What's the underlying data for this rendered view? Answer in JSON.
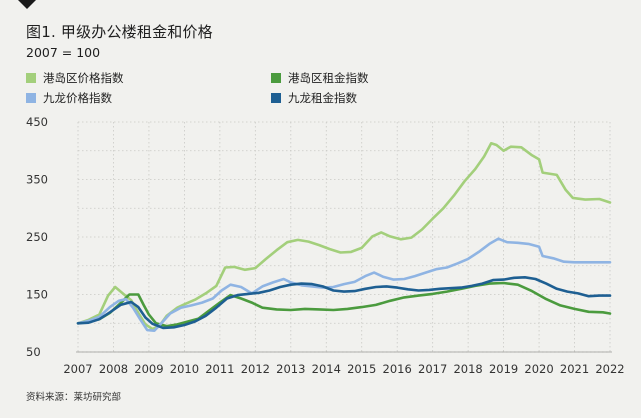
{
  "header": {
    "title": "图1. 甲级办公楼租金和价格",
    "subtitle": "2007 = 100"
  },
  "footer": {
    "source": "资料来源：莱坊研究部"
  },
  "chart_data": {
    "type": "line",
    "ylim": [
      50,
      450
    ],
    "yticks": [
      "450",
      "350",
      "250",
      "150",
      "50"
    ],
    "xlim": [
      2007,
      2022
    ],
    "xticks": [
      "2007",
      "2008",
      "2009",
      "2010",
      "2011",
      "2012",
      "2013",
      "2014",
      "2015",
      "2016",
      "2017",
      "2018",
      "2019",
      "2020",
      "2021",
      "2022"
    ],
    "grid": true,
    "legend_position": "top",
    "series": [
      {
        "name": "港岛区价格指数",
        "color": "#a3cf7b",
        "points": [
          [
            2007.0,
            100
          ],
          [
            2007.3,
            106
          ],
          [
            2007.6,
            115
          ],
          [
            2007.85,
            148
          ],
          [
            2008.05,
            163
          ],
          [
            2008.3,
            150
          ],
          [
            2008.5,
            140
          ],
          [
            2008.7,
            118
          ],
          [
            2008.9,
            98
          ],
          [
            2009.1,
            90
          ],
          [
            2009.3,
            96
          ],
          [
            2009.5,
            113
          ],
          [
            2009.8,
            127
          ],
          [
            2010.0,
            133
          ],
          [
            2010.3,
            141
          ],
          [
            2010.6,
            152
          ],
          [
            2010.9,
            165
          ],
          [
            2011.15,
            197
          ],
          [
            2011.4,
            198
          ],
          [
            2011.7,
            193
          ],
          [
            2012.0,
            196
          ],
          [
            2012.3,
            212
          ],
          [
            2012.6,
            227
          ],
          [
            2012.9,
            241
          ],
          [
            2013.2,
            245
          ],
          [
            2013.5,
            242
          ],
          [
            2013.8,
            236
          ],
          [
            2014.1,
            229
          ],
          [
            2014.4,
            223
          ],
          [
            2014.7,
            224
          ],
          [
            2015.0,
            231
          ],
          [
            2015.3,
            251
          ],
          [
            2015.55,
            258
          ],
          [
            2015.8,
            251
          ],
          [
            2016.1,
            246
          ],
          [
            2016.4,
            249
          ],
          [
            2016.7,
            263
          ],
          [
            2017.0,
            282
          ],
          [
            2017.3,
            300
          ],
          [
            2017.6,
            322
          ],
          [
            2017.9,
            347
          ],
          [
            2018.2,
            368
          ],
          [
            2018.45,
            390
          ],
          [
            2018.65,
            413
          ],
          [
            2018.8,
            410
          ],
          [
            2019.0,
            400
          ],
          [
            2019.2,
            407
          ],
          [
            2019.5,
            406
          ],
          [
            2019.8,
            392
          ],
          [
            2020.0,
            385
          ],
          [
            2020.1,
            362
          ],
          [
            2020.5,
            358
          ],
          [
            2020.75,
            332
          ],
          [
            2020.95,
            318
          ],
          [
            2021.3,
            315
          ],
          [
            2021.7,
            316
          ],
          [
            2022.0,
            310
          ]
        ]
      },
      {
        "name": "港岛区租金指数",
        "color": "#4b9b3e",
        "points": [
          [
            2007.0,
            100
          ],
          [
            2007.3,
            103
          ],
          [
            2007.6,
            107
          ],
          [
            2007.9,
            118
          ],
          [
            2008.2,
            135
          ],
          [
            2008.45,
            150
          ],
          [
            2008.7,
            150
          ],
          [
            2008.85,
            132
          ],
          [
            2009.0,
            115
          ],
          [
            2009.2,
            100
          ],
          [
            2009.5,
            95
          ],
          [
            2009.8,
            98
          ],
          [
            2010.1,
            103
          ],
          [
            2010.4,
            108
          ],
          [
            2010.7,
            122
          ],
          [
            2011.0,
            136
          ],
          [
            2011.3,
            149
          ],
          [
            2011.6,
            143
          ],
          [
            2011.9,
            136
          ],
          [
            2012.2,
            127
          ],
          [
            2012.6,
            124
          ],
          [
            2013.0,
            123
          ],
          [
            2013.4,
            125
          ],
          [
            2013.8,
            124
          ],
          [
            2014.2,
            123
          ],
          [
            2014.6,
            125
          ],
          [
            2015.0,
            128
          ],
          [
            2015.4,
            132
          ],
          [
            2015.8,
            139
          ],
          [
            2016.2,
            145
          ],
          [
            2016.6,
            148
          ],
          [
            2017.0,
            151
          ],
          [
            2017.4,
            155
          ],
          [
            2017.8,
            160
          ],
          [
            2018.2,
            165
          ],
          [
            2018.6,
            169
          ],
          [
            2019.0,
            170
          ],
          [
            2019.4,
            167
          ],
          [
            2019.8,
            156
          ],
          [
            2020.2,
            142
          ],
          [
            2020.6,
            131
          ],
          [
            2021.0,
            125
          ],
          [
            2021.4,
            120
          ],
          [
            2021.8,
            119
          ],
          [
            2022.0,
            117
          ]
        ]
      },
      {
        "name": "九龙价格指数",
        "color": "#8fb4e3",
        "points": [
          [
            2007.0,
            100
          ],
          [
            2007.3,
            104
          ],
          [
            2007.6,
            111
          ],
          [
            2007.9,
            128
          ],
          [
            2008.15,
            139
          ],
          [
            2008.35,
            142
          ],
          [
            2008.55,
            127
          ],
          [
            2008.75,
            107
          ],
          [
            2008.95,
            88
          ],
          [
            2009.15,
            87
          ],
          [
            2009.35,
            100
          ],
          [
            2009.6,
            117
          ],
          [
            2009.9,
            127
          ],
          [
            2010.2,
            131
          ],
          [
            2010.5,
            136
          ],
          [
            2010.8,
            143
          ],
          [
            2011.05,
            157
          ],
          [
            2011.3,
            167
          ],
          [
            2011.6,
            163
          ],
          [
            2011.9,
            152
          ],
          [
            2012.2,
            164
          ],
          [
            2012.5,
            171
          ],
          [
            2012.8,
            177
          ],
          [
            2013.0,
            171
          ],
          [
            2013.3,
            166
          ],
          [
            2013.6,
            164
          ],
          [
            2013.9,
            162
          ],
          [
            2014.2,
            163
          ],
          [
            2014.5,
            168
          ],
          [
            2014.8,
            172
          ],
          [
            2015.1,
            182
          ],
          [
            2015.35,
            188
          ],
          [
            2015.6,
            181
          ],
          [
            2015.9,
            176
          ],
          [
            2016.2,
            177
          ],
          [
            2016.5,
            182
          ],
          [
            2016.8,
            188
          ],
          [
            2017.1,
            194
          ],
          [
            2017.4,
            197
          ],
          [
            2017.7,
            204
          ],
          [
            2018.0,
            212
          ],
          [
            2018.3,
            224
          ],
          [
            2018.6,
            238
          ],
          [
            2018.85,
            247
          ],
          [
            2019.1,
            241
          ],
          [
            2019.4,
            240
          ],
          [
            2019.7,
            238
          ],
          [
            2020.0,
            233
          ],
          [
            2020.1,
            217
          ],
          [
            2020.4,
            213
          ],
          [
            2020.7,
            207
          ],
          [
            2021.0,
            206
          ],
          [
            2021.5,
            206
          ],
          [
            2022.0,
            206
          ]
        ]
      },
      {
        "name": "九龙租金指数",
        "color": "#1e5f92",
        "points": [
          [
            2007.0,
            100
          ],
          [
            2007.3,
            101
          ],
          [
            2007.6,
            107
          ],
          [
            2007.9,
            119
          ],
          [
            2008.2,
            132
          ],
          [
            2008.5,
            137
          ],
          [
            2008.7,
            128
          ],
          [
            2008.9,
            110
          ],
          [
            2009.1,
            99
          ],
          [
            2009.4,
            92
          ],
          [
            2009.7,
            93
          ],
          [
            2010.0,
            97
          ],
          [
            2010.3,
            103
          ],
          [
            2010.6,
            113
          ],
          [
            2010.9,
            127
          ],
          [
            2011.2,
            143
          ],
          [
            2011.5,
            149
          ],
          [
            2011.8,
            151
          ],
          [
            2012.1,
            153
          ],
          [
            2012.4,
            157
          ],
          [
            2012.7,
            163
          ],
          [
            2013.0,
            167
          ],
          [
            2013.3,
            169
          ],
          [
            2013.6,
            168
          ],
          [
            2013.9,
            164
          ],
          [
            2014.2,
            157
          ],
          [
            2014.5,
            155
          ],
          [
            2014.8,
            156
          ],
          [
            2015.1,
            160
          ],
          [
            2015.4,
            163
          ],
          [
            2015.7,
            164
          ],
          [
            2016.0,
            162
          ],
          [
            2016.3,
            159
          ],
          [
            2016.6,
            157
          ],
          [
            2016.9,
            158
          ],
          [
            2017.2,
            160
          ],
          [
            2017.5,
            161
          ],
          [
            2017.8,
            162
          ],
          [
            2018.1,
            165
          ],
          [
            2018.4,
            169
          ],
          [
            2018.7,
            175
          ],
          [
            2019.0,
            176
          ],
          [
            2019.3,
            179
          ],
          [
            2019.6,
            180
          ],
          [
            2019.9,
            177
          ],
          [
            2020.2,
            169
          ],
          [
            2020.5,
            160
          ],
          [
            2020.8,
            155
          ],
          [
            2021.1,
            152
          ],
          [
            2021.4,
            147
          ],
          [
            2021.7,
            148
          ],
          [
            2022.0,
            148
          ]
        ]
      }
    ]
  }
}
